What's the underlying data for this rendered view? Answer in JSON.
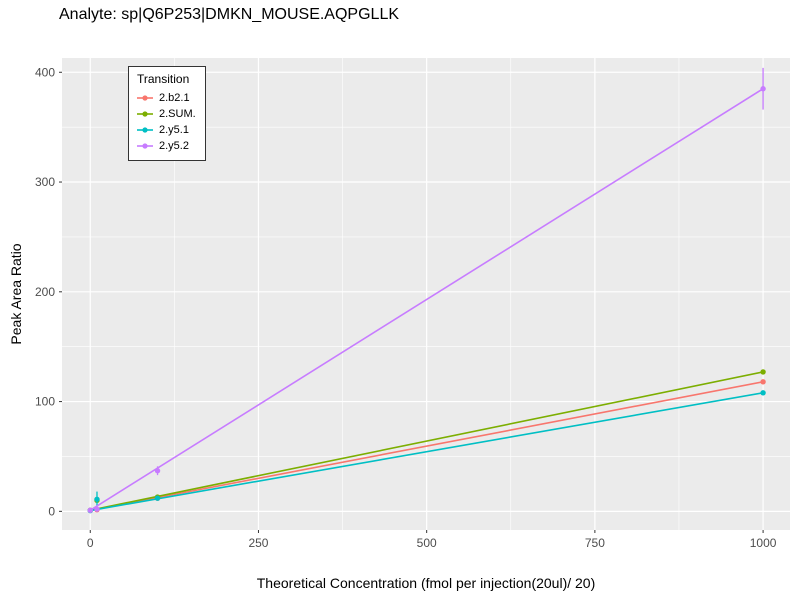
{
  "chart_data": {
    "type": "line",
    "title": "Analyte: sp|Q6P253|DMKN_MOUSE.AQPGLLK",
    "xlabel": "Theoretical Concentration (fmol per injection(20ul)/ 20)",
    "ylabel": "Peak Area Ratio",
    "legend_title": "Transition",
    "legend_position": "top-left-inside",
    "panel_bg": "#EBEBEB",
    "grid_color": "#FFFFFF",
    "tick_color": "#333333",
    "tick_label_color": "#4D4D4D",
    "xlim": [
      -42,
      1040
    ],
    "ylim": [
      -17,
      413
    ],
    "xticks": [
      0,
      250,
      500,
      750,
      1000
    ],
    "yticks": [
      0,
      100,
      200,
      300,
      400
    ],
    "x_minor_ticks": [
      125,
      375,
      625,
      875
    ],
    "y_minor_ticks": [
      50,
      150,
      250,
      350
    ],
    "series": [
      {
        "name": "2.b2.1",
        "color": "#F8766D",
        "line": [
          {
            "x": 0,
            "y": 0.8
          },
          {
            "x": 1000,
            "y": 118
          }
        ],
        "points": [
          {
            "x": 0,
            "y": 0.8
          },
          {
            "x": 10,
            "y": 1.5
          },
          {
            "x": 100,
            "y": 12
          },
          {
            "x": 1000,
            "y": 118
          }
        ]
      },
      {
        "name": "2.SUM.",
        "color": "#7CAE00",
        "line": [
          {
            "x": 0,
            "y": 1
          },
          {
            "x": 1000,
            "y": 127
          }
        ],
        "points": [
          {
            "x": 0,
            "y": 1
          },
          {
            "x": 10,
            "y": 10
          },
          {
            "x": 100,
            "y": 13
          },
          {
            "x": 1000,
            "y": 127
          }
        ]
      },
      {
        "name": "2.y5.1",
        "color": "#00BFC4",
        "line": [
          {
            "x": 0,
            "y": 0.7
          },
          {
            "x": 1000,
            "y": 108
          }
        ],
        "points": [
          {
            "x": 0,
            "y": 0.7
          },
          {
            "x": 10,
            "y": 11,
            "ylo": 5,
            "yhi": 18
          },
          {
            "x": 100,
            "y": 12
          },
          {
            "x": 1000,
            "y": 108
          }
        ]
      },
      {
        "name": "2.y5.2",
        "color": "#C77CFF",
        "line": [
          {
            "x": 0,
            "y": 1
          },
          {
            "x": 1000,
            "y": 385
          }
        ],
        "points": [
          {
            "x": 0,
            "y": 1
          },
          {
            "x": 10,
            "y": 2
          },
          {
            "x": 100,
            "y": 37,
            "ylo": 33,
            "yhi": 41
          },
          {
            "x": 1000,
            "y": 385,
            "ylo": 366,
            "yhi": 404
          }
        ]
      }
    ]
  }
}
